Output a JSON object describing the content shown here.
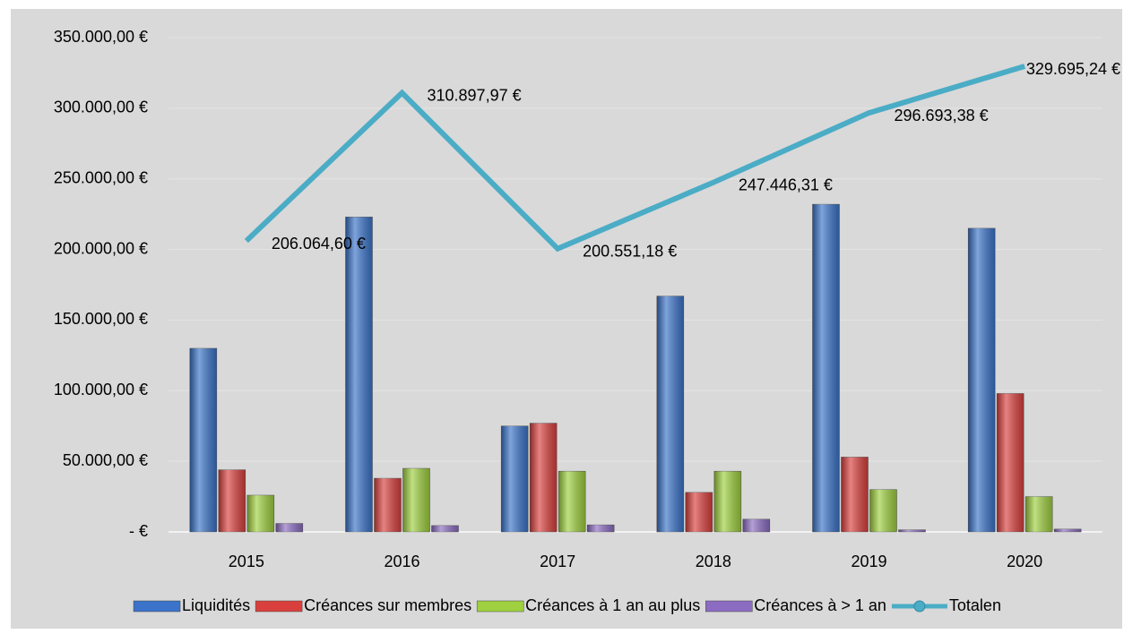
{
  "chart_data": {
    "type": "bar",
    "categories": [
      "2015",
      "2016",
      "2017",
      "2018",
      "2019",
      "2020"
    ],
    "series": [
      {
        "name": "Liquidités",
        "color": "#3a73c9",
        "values": [
          130000,
          223000,
          75000,
          167000,
          232000,
          215000
        ]
      },
      {
        "name": "Créances sur membres",
        "color": "#d9403d",
        "values": [
          44000,
          38000,
          77000,
          28000,
          53000,
          98000
        ]
      },
      {
        "name": "Créances à 1 an au plus",
        "color": "#9fd03f",
        "values": [
          26000,
          45000,
          43000,
          43000,
          30000,
          25000
        ]
      },
      {
        "name": "Créances à > 1 an",
        "color": "#8c6cc2",
        "values": [
          6000,
          4500,
          5000,
          9000,
          1500,
          2000
        ]
      },
      {
        "name": "Totalen",
        "color": "#4bacc6",
        "type": "line",
        "values": [
          206064.6,
          310897.97,
          200551.18,
          247446.31,
          296693.38,
          329695.24
        ],
        "value_labels": [
          "206.064,60 €",
          "310.897,97 €",
          "200.551,18 €",
          "247.446,31 €",
          "296.693,38 €",
          "329.695,24 €"
        ]
      }
    ],
    "ylim": [
      0,
      350000
    ],
    "yticks": [
      {
        "value": 0,
        "label": "-  €"
      },
      {
        "value": 50000,
        "label": "50.000,00 €"
      },
      {
        "value": 100000,
        "label": "100.000,00 €"
      },
      {
        "value": 150000,
        "label": "150.000,00 €"
      },
      {
        "value": 200000,
        "label": "200.000,00 €"
      },
      {
        "value": 250000,
        "label": "250.000,00 €"
      },
      {
        "value": 300000,
        "label": "300.000,00 €"
      },
      {
        "value": 350000,
        "label": "350.000,00 €"
      }
    ],
    "grid": true,
    "legend": "bottom"
  }
}
